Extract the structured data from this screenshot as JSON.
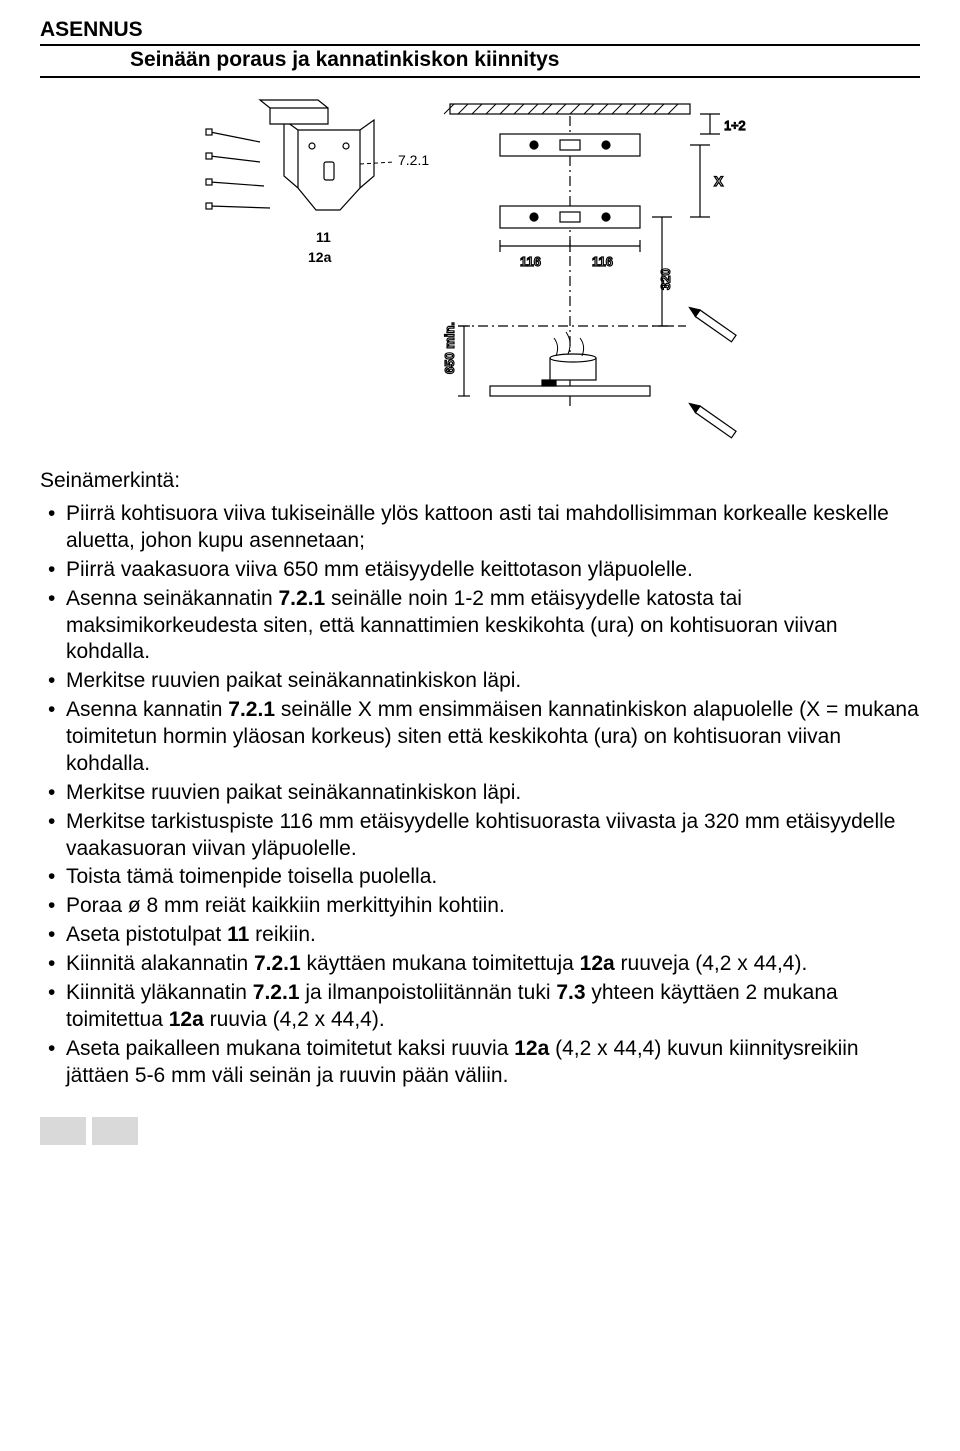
{
  "section_title": "ASENNUS",
  "sub_title": "Seinään poraus ja kannatinkiskon kiinnitys",
  "diagram": {
    "labels": {
      "bracket_ref": "7.2.1",
      "dim_11": "11",
      "dim_12a": "12a",
      "dim_116a": "116",
      "dim_116b": "116",
      "dim_320": "320",
      "dim_X": "X",
      "dim_1_2": "1÷2",
      "dim_650min": "650 min."
    },
    "colors": {
      "line": "#000000",
      "fill_light": "#ffffff",
      "hatch": "#000000"
    }
  },
  "list_heading": "Seinämerkintä:",
  "items": [
    {
      "html": "Piirrä kohtisuora viiva tukiseinälle ylös kattoon asti tai mahdollisimman korkealle keskelle aluetta, johon kupu asennetaan;"
    },
    {
      "html": "Piirrä vaakasuora viiva 650 mm etäisyydelle keittotason yläpuolelle."
    },
    {
      "html": "Asenna seinäkannatin <b>7.2.1</b> seinälle noin 1-2 mm etäisyydelle katosta tai maksimikorkeudesta siten, että kannattimien keskikohta (ura) on kohtisuoran viivan kohdalla."
    },
    {
      "html": "Merkitse ruuvien paikat seinäkannatinkiskon läpi."
    },
    {
      "html": "Asenna kannatin <b>7.2.1</b> seinälle X mm ensimmäisen kannatinkiskon alapuolelle (X = mukana toimitetun hormin yläosan korkeus) siten että keskikohta (ura) on kohtisuoran viivan kohdalla."
    },
    {
      "html": "Merkitse ruuvien paikat seinäkannatinkiskon läpi."
    },
    {
      "html": "Merkitse tarkistuspiste 116 mm etäisyydelle kohtisuorasta viivasta ja 320 mm etäisyydelle vaakasuoran viivan yläpuolelle."
    },
    {
      "html": "Toista tämä toimenpide toisella puolella."
    },
    {
      "html": "Poraa ø 8 mm reiät kaikkiin merkittyihin kohtiin."
    },
    {
      "html": "Aseta pistotulpat <b>11</b> reikiin."
    },
    {
      "html": "Kiinnitä alakannatin <b>7.2.1</b> käyttäen mukana toimitettuja <b>12a</b> ruuveja (4,2 x 44,4)."
    },
    {
      "html": "Kiinnitä yläkannatin <b>7.2.1</b> ja ilmanpoistoliitännän tuki <b>7.3</b> yhteen käyttäen 2 mukana toimitettua <b>12a</b> ruuvia (4,2 x 44,4)."
    },
    {
      "html": "Aseta paikalleen mukana toimitetut kaksi ruuvia <b>12a</b> (4,2 x 44,4) kuvun kiinnitysreikiin jättäen 5-6 mm väli seinän ja ruuvin pään väliin."
    }
  ]
}
